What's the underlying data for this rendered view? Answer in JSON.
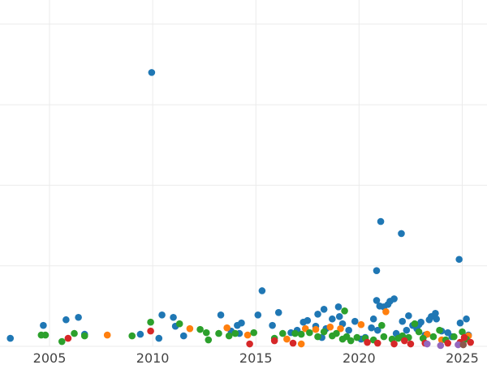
{
  "chart_data": {
    "type": "scatter",
    "title": "",
    "xlabel": "",
    "ylabel": "",
    "xlim": [
      2002.6,
      2026.2
    ],
    "ylim": [
      0,
      4.3
    ],
    "grid": true,
    "legend": "none",
    "x_ticks": [
      2005,
      2010,
      2015,
      2020,
      2025
    ],
    "x_tick_labels": [
      "2005",
      "2010",
      "2015",
      "2020",
      "2025"
    ],
    "y_gridlines": [
      0,
      1,
      2,
      3,
      4
    ],
    "series": [
      {
        "color": "#1f77b4",
        "points": [
          [
            2003.1,
            0.1
          ],
          [
            2004.7,
            0.26
          ],
          [
            2005.8,
            0.33
          ],
          [
            2006.4,
            0.36
          ],
          [
            2006.7,
            0.15
          ],
          [
            2009.4,
            0.15
          ],
          [
            2009.95,
            3.4
          ],
          [
            2010.3,
            0.1
          ],
          [
            2010.45,
            0.39
          ],
          [
            2011.0,
            0.36
          ],
          [
            2011.5,
            0.13
          ],
          [
            2011.1,
            0.25
          ],
          [
            2013.3,
            0.39
          ],
          [
            2013.8,
            0.19
          ],
          [
            2014.1,
            0.26
          ],
          [
            2014.3,
            0.29
          ],
          [
            2014.2,
            0.16
          ],
          [
            2015.1,
            0.39
          ],
          [
            2015.3,
            0.69
          ],
          [
            2015.8,
            0.26
          ],
          [
            2016.1,
            0.42
          ],
          [
            2016.7,
            0.17
          ],
          [
            2017.0,
            0.2
          ],
          [
            2017.3,
            0.3
          ],
          [
            2017.5,
            0.32
          ],
          [
            2017.9,
            0.25
          ],
          [
            2018.0,
            0.4
          ],
          [
            2018.3,
            0.46
          ],
          [
            2018.4,
            0.22
          ],
          [
            2018.7,
            0.34
          ],
          [
            2019.0,
            0.49
          ],
          [
            2019.05,
            0.37
          ],
          [
            2019.2,
            0.28
          ],
          [
            2019.5,
            0.2
          ],
          [
            2019.8,
            0.31
          ],
          [
            2020.3,
            0.11
          ],
          [
            2020.6,
            0.23
          ],
          [
            2020.7,
            0.34
          ],
          [
            2020.85,
            0.94
          ],
          [
            2020.85,
            0.57
          ],
          [
            2020.9,
            0.2
          ],
          [
            2021.05,
            1.55
          ],
          [
            2021.0,
            0.5
          ],
          [
            2021.2,
            0.49
          ],
          [
            2021.4,
            0.52
          ],
          [
            2021.5,
            0.56
          ],
          [
            2021.7,
            0.59
          ],
          [
            2021.8,
            0.16
          ],
          [
            2022.05,
            1.4
          ],
          [
            2022.1,
            0.31
          ],
          [
            2022.3,
            0.2
          ],
          [
            2022.4,
            0.38
          ],
          [
            2022.6,
            0.26
          ],
          [
            2022.8,
            0.22
          ],
          [
            2023.0,
            0.3
          ],
          [
            2023.2,
            0.14
          ],
          [
            2023.4,
            0.33
          ],
          [
            2023.5,
            0.37
          ],
          [
            2023.7,
            0.41
          ],
          [
            2023.75,
            0.34
          ],
          [
            2024.0,
            0.19
          ],
          [
            2024.3,
            0.17
          ],
          [
            2024.5,
            0.12
          ],
          [
            2024.85,
            1.08
          ],
          [
            2024.9,
            0.29
          ],
          [
            2025.2,
            0.34
          ],
          [
            2025.3,
            0.14
          ],
          [
            2022.9,
            0.27
          ],
          [
            2018.2,
            0.11
          ],
          [
            2020.1,
            0.09
          ]
        ]
      },
      {
        "color": "#ff7f0e",
        "points": [
          [
            2007.8,
            0.14
          ],
          [
            2011.8,
            0.22
          ],
          [
            2013.6,
            0.23
          ],
          [
            2014.6,
            0.14
          ],
          [
            2016.5,
            0.09
          ],
          [
            2017.2,
            0.03
          ],
          [
            2017.4,
            0.22
          ],
          [
            2017.9,
            0.21
          ],
          [
            2018.6,
            0.24
          ],
          [
            2019.1,
            0.22
          ],
          [
            2020.1,
            0.27
          ],
          [
            2021.3,
            0.43
          ],
          [
            2022.2,
            0.1
          ],
          [
            2023.3,
            0.15
          ],
          [
            2024.0,
            0.08
          ],
          [
            2025.3,
            0.13
          ]
        ]
      },
      {
        "color": "#2ca02c",
        "points": [
          [
            2004.6,
            0.14
          ],
          [
            2004.8,
            0.14
          ],
          [
            2005.6,
            0.06
          ],
          [
            2006.2,
            0.16
          ],
          [
            2006.7,
            0.13
          ],
          [
            2009.0,
            0.13
          ],
          [
            2009.9,
            0.3
          ],
          [
            2011.3,
            0.28
          ],
          [
            2012.3,
            0.21
          ],
          [
            2012.6,
            0.17
          ],
          [
            2012.7,
            0.08
          ],
          [
            2013.2,
            0.16
          ],
          [
            2013.7,
            0.13
          ],
          [
            2014.0,
            0.16
          ],
          [
            2014.9,
            0.17
          ],
          [
            2015.9,
            0.1
          ],
          [
            2016.3,
            0.16
          ],
          [
            2016.9,
            0.16
          ],
          [
            2017.2,
            0.15
          ],
          [
            2017.6,
            0.17
          ],
          [
            2018.0,
            0.12
          ],
          [
            2018.3,
            0.18
          ],
          [
            2018.7,
            0.13
          ],
          [
            2018.9,
            0.16
          ],
          [
            2019.2,
            0.09
          ],
          [
            2019.3,
            0.44
          ],
          [
            2019.4,
            0.12
          ],
          [
            2019.6,
            0.07
          ],
          [
            2019.9,
            0.11
          ],
          [
            2020.3,
            0.1
          ],
          [
            2020.7,
            0.08
          ],
          [
            2021.1,
            0.26
          ],
          [
            2021.2,
            0.12
          ],
          [
            2021.6,
            0.09
          ],
          [
            2021.9,
            0.1
          ],
          [
            2022.1,
            0.13
          ],
          [
            2022.4,
            0.11
          ],
          [
            2022.7,
            0.28
          ],
          [
            2022.9,
            0.18
          ],
          [
            2023.1,
            0.1
          ],
          [
            2023.6,
            0.12
          ],
          [
            2023.9,
            0.2
          ],
          [
            2024.2,
            0.08
          ],
          [
            2024.6,
            0.12
          ],
          [
            2025.0,
            0.18
          ],
          [
            2025.2,
            0.09
          ]
        ]
      },
      {
        "color": "#d62728",
        "points": [
          [
            2005.9,
            0.1
          ],
          [
            2009.9,
            0.19
          ],
          [
            2014.7,
            0.03
          ],
          [
            2015.9,
            0.07
          ],
          [
            2016.8,
            0.04
          ],
          [
            2020.4,
            0.05
          ],
          [
            2020.9,
            0.04
          ],
          [
            2021.7,
            0.03
          ],
          [
            2022.2,
            0.07
          ],
          [
            2022.5,
            0.03
          ],
          [
            2023.2,
            0.04
          ],
          [
            2024.3,
            0.04
          ],
          [
            2024.9,
            0.05
          ],
          [
            2025.1,
            0.11
          ],
          [
            2025.4,
            0.05
          ]
        ]
      },
      {
        "color": "#9467bd",
        "points": [
          [
            2023.3,
            0.03
          ],
          [
            2023.95,
            0.01
          ],
          [
            2024.8,
            0.02
          ]
        ]
      },
      {
        "color": "#8c564b",
        "points": [
          [
            2025.05,
            0.02
          ]
        ]
      }
    ]
  }
}
